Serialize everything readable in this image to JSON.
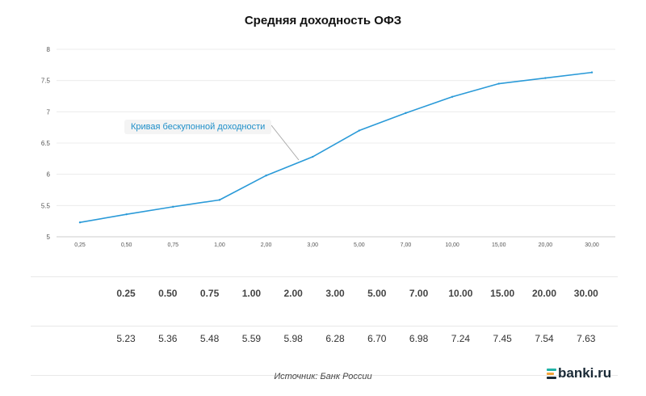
{
  "chart_data": {
    "type": "line",
    "title": "Средняя доходность ОФЗ",
    "categories": [
      "0,25",
      "0,50",
      "0,75",
      "1,00",
      "2,00",
      "3,00",
      "5,00",
      "7,00",
      "10,00",
      "15,00",
      "20,00",
      "30,00"
    ],
    "series": [
      {
        "name": "Кривая бескупонной доходности",
        "values": [
          5.23,
          5.36,
          5.48,
          5.59,
          5.98,
          6.28,
          6.7,
          6.98,
          7.24,
          7.45,
          7.54,
          7.63
        ],
        "color": "#2a9ad8"
      }
    ],
    "ylim": [
      5,
      8
    ],
    "yticks": [
      "5",
      "5.5",
      "6",
      "6.5",
      "7",
      "7.5",
      "8"
    ],
    "grid": true,
    "xlabel": "",
    "ylabel": ""
  },
  "table": {
    "headers": [
      "0.25",
      "0.50",
      "0.75",
      "1.00",
      "2.00",
      "3.00",
      "5.00",
      "7.00",
      "10.00",
      "15.00",
      "20.00",
      "30.00"
    ],
    "values": [
      "5.23",
      "5.36",
      "5.48",
      "5.59",
      "5.98",
      "6.28",
      "6.70",
      "6.98",
      "7.24",
      "7.45",
      "7.54",
      "7.63"
    ]
  },
  "footer": {
    "source": "Источник: Банк России",
    "logo_text": "banki.ru"
  },
  "colors": {
    "line": "#2a9ad8",
    "logo_mark": [
      "#21b3a7",
      "#f2a43a",
      "#1a2a36"
    ]
  }
}
